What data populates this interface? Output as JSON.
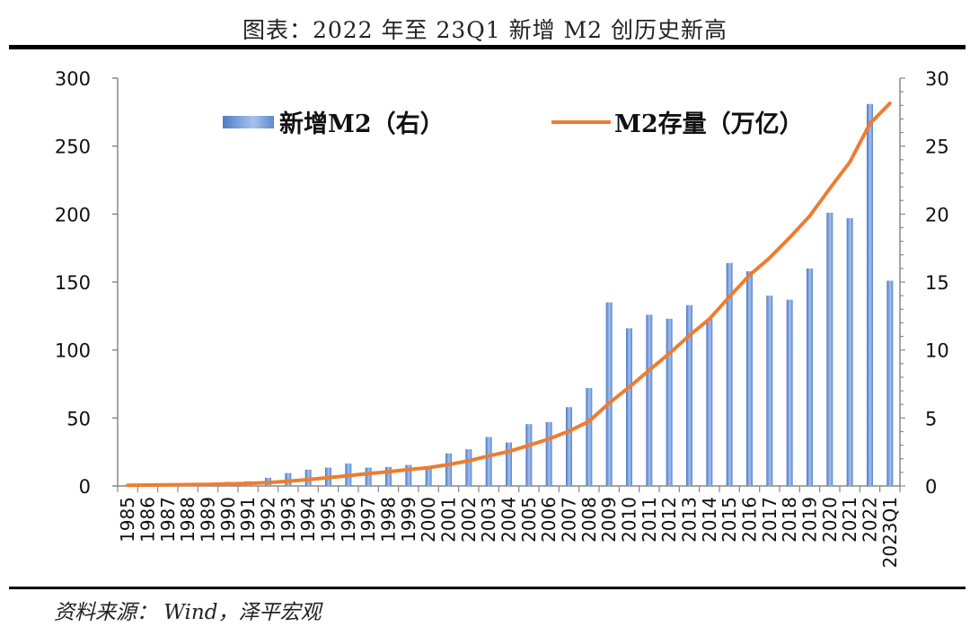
{
  "title": "图表：2022 年至 23Q1 新增 M2 创历史新高",
  "source": "资料来源： Wind，泽平宏观",
  "chart_data": {
    "type": "bar+line",
    "title": "图表：2022 年至 23Q1 新增 M2 创历史新高",
    "categories": [
      "1985",
      "1986",
      "1987",
      "1988",
      "1989",
      "1990",
      "1991",
      "1992",
      "1993",
      "1994",
      "1995",
      "1996",
      "1997",
      "1998",
      "1999",
      "2000",
      "2001",
      "2002",
      "2003",
      "2004",
      "2005",
      "2006",
      "2007",
      "2008",
      "2009",
      "2010",
      "2011",
      "2012",
      "2013",
      "2014",
      "2015",
      "2016",
      "2017",
      "2018",
      "2019",
      "2020",
      "2021",
      "2022",
      "2023Q1"
    ],
    "series": [
      {
        "name": "新增M2（右）",
        "type": "bar",
        "axis": "right",
        "color": "#5b8bd6",
        "values": [
          0.05,
          0.1,
          0.1,
          0.15,
          0.15,
          0.3,
          0.35,
          0.6,
          0.95,
          1.2,
          1.35,
          1.65,
          1.35,
          1.4,
          1.55,
          1.35,
          2.4,
          2.7,
          3.6,
          3.2,
          4.55,
          4.7,
          5.8,
          7.2,
          13.5,
          11.6,
          12.6,
          12.3,
          13.3,
          12.3,
          16.4,
          15.8,
          14.0,
          13.7,
          16.0,
          20.1,
          19.7,
          28.1,
          15.1
        ]
      },
      {
        "name": "M2存量（万亿）",
        "type": "line",
        "axis": "left",
        "color": "#ed7d31",
        "values": [
          0.5,
          0.67,
          0.83,
          1.0,
          1.2,
          1.5,
          1.9,
          2.5,
          3.5,
          4.7,
          6.1,
          7.6,
          9.1,
          10.5,
          12.0,
          13.5,
          15.8,
          18.5,
          22.1,
          25.4,
          29.9,
          34.6,
          40.3,
          47.5,
          61.0,
          72.6,
          85.2,
          97.4,
          110.7,
          122.8,
          139.2,
          155.0,
          167.7,
          182.7,
          198.6,
          218.7,
          238.3,
          266.4,
          281.5
        ]
      }
    ],
    "left_axis": {
      "range": [
        0,
        300
      ],
      "ticks": [
        "0",
        "50",
        "100",
        "150",
        "200",
        "250",
        "300"
      ]
    },
    "right_axis": {
      "range": [
        0,
        30
      ],
      "ticks": [
        "0",
        "5",
        "10",
        "15",
        "20",
        "25",
        "30"
      ]
    },
    "grid": false,
    "legend": "top"
  }
}
